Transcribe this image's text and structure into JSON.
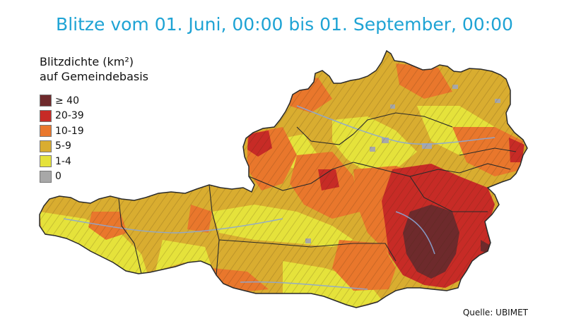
{
  "title": "Blitze vom 01. Juni, 00:00 bis 01. September, 00:00",
  "colors": {
    "title": "#1ea3d4",
    "ge40": "#6e2a2c",
    "20to39": "#c72b26",
    "10to19": "#e9772c",
    "5to9": "#d9ad30",
    "1to4": "#e5e23b",
    "zero": "#a8a8a8",
    "border": "#2a2a2a",
    "rivers": "#8aa6d6"
  },
  "legend": {
    "title_line1": "Blitzdichte (km²)",
    "title_line2": "auf Gemeindebasis",
    "items": [
      {
        "label": "≥ 40",
        "color": "#6e2a2c"
      },
      {
        "label": "20-39",
        "color": "#c72b26"
      },
      {
        "label": "10-19",
        "color": "#e9772c"
      },
      {
        "label": "5-9",
        "color": "#d9ad30"
      },
      {
        "label": "1-4",
        "color": "#e5e23b"
      },
      {
        "label": "0",
        "color": "#a8a8a8"
      }
    ]
  },
  "source": "Quelle: UBIMET"
}
